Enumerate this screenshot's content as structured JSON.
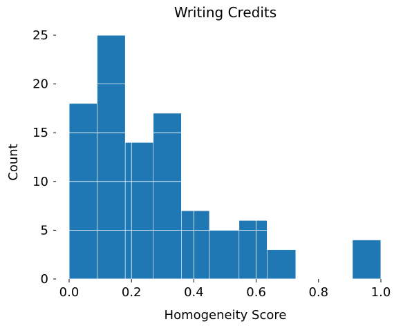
{
  "chart_data": {
    "type": "bar",
    "title": "Writing Credits",
    "xlabel": "Homogeneity Score",
    "ylabel": "Count",
    "xlim": [
      0.0,
      1.0
    ],
    "ylim": [
      0,
      25
    ],
    "x_ticks": [
      "0.0",
      "0.2",
      "0.4",
      "0.6",
      "0.8",
      "1.0"
    ],
    "y_ticks": [
      "0",
      "5",
      "10",
      "15",
      "20",
      "25"
    ],
    "bins": [
      {
        "start": 0.0,
        "end": 0.09,
        "count": 18
      },
      {
        "start": 0.09,
        "end": 0.18,
        "count": 25
      },
      {
        "start": 0.18,
        "end": 0.27,
        "count": 14
      },
      {
        "start": 0.27,
        "end": 0.36,
        "count": 17
      },
      {
        "start": 0.36,
        "end": 0.45,
        "count": 7
      },
      {
        "start": 0.45,
        "end": 0.545,
        "count": 5
      },
      {
        "start": 0.545,
        "end": 0.635,
        "count": 6
      },
      {
        "start": 0.635,
        "end": 0.727,
        "count": 3
      },
      {
        "start": 0.909,
        "end": 1.0,
        "count": 4
      }
    ],
    "grid": true,
    "bar_color": "#1f77b4",
    "grid_color": "#ffffff",
    "tick_color": "#000000"
  }
}
